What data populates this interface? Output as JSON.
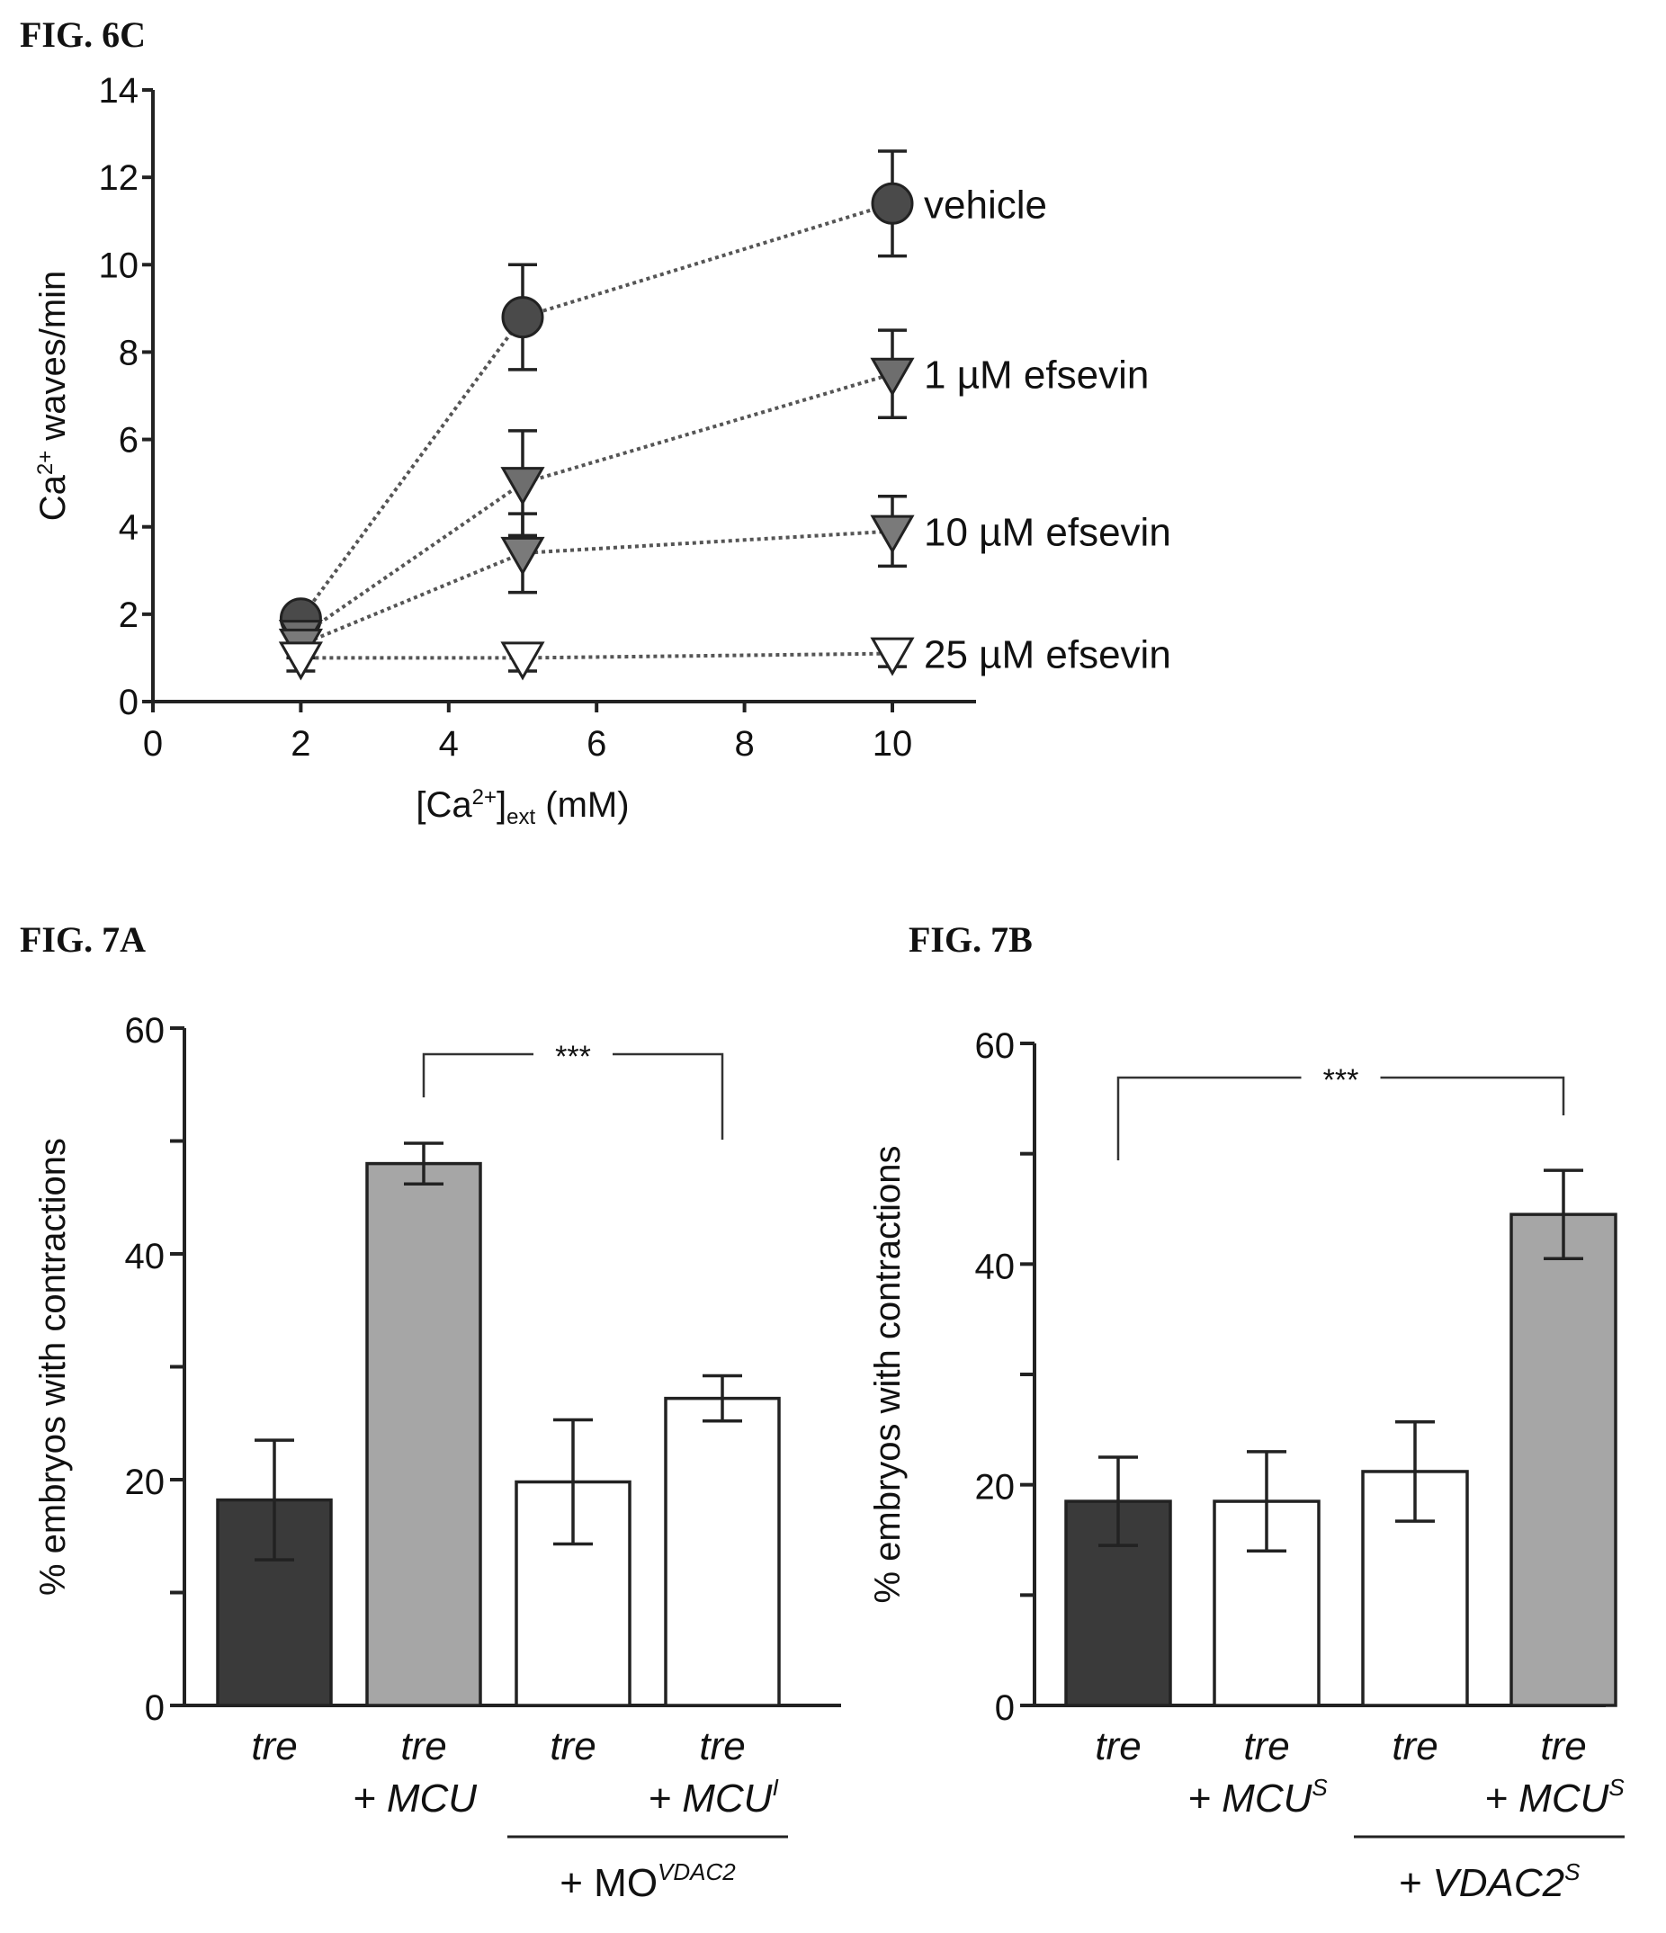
{
  "chart_data": [
    {
      "fig_label": "FIG. 6C",
      "type": "line",
      "xlabel_pre": "[Ca",
      "xlabel_sup": "2+",
      "xlabel_mid": "]",
      "xlabel_sub": "ext",
      "xlabel_post": " (mM)",
      "ylabel_pre": "Ca",
      "ylabel_sup": "2+",
      "ylabel_post": " waves/min",
      "xlim": [
        0,
        11
      ],
      "ylim": [
        0,
        14
      ],
      "xticks": [
        0,
        2,
        4,
        6,
        8,
        10
      ],
      "yticks": [
        0,
        2,
        4,
        6,
        8,
        10,
        12,
        14
      ],
      "x": [
        2,
        5,
        10
      ],
      "series": [
        {
          "name": "vehicle",
          "marker": "circle",
          "fill": "#4a4a4a",
          "y": [
            1.9,
            8.8,
            11.4
          ],
          "err": [
            0.3,
            1.2,
            1.2
          ]
        },
        {
          "name": "1 µM efsevin",
          "marker": "triangle-down",
          "fill": "#6e6e6e",
          "y": [
            1.5,
            5.0,
            7.5
          ],
          "err": [
            0.3,
            1.2,
            1.0
          ]
        },
        {
          "name": "10 µM efsevin",
          "marker": "triangle-down",
          "fill": "#7a7a7a",
          "y": [
            1.3,
            3.4,
            3.9
          ],
          "err": [
            0.3,
            0.9,
            0.8
          ]
        },
        {
          "name": "25 µM efsevin",
          "marker": "triangle-down",
          "fill": "#ffffff",
          "y": [
            1.0,
            1.0,
            1.1
          ],
          "err": [
            0.3,
            0.3,
            0.3
          ]
        }
      ]
    },
    {
      "fig_label": "FIG. 7A",
      "type": "bar",
      "ylabel": "% embryos with contractions",
      "ylim": [
        0,
        60
      ],
      "yticks_labeled": [
        0,
        20,
        40,
        60
      ],
      "yticks_minor": [
        10,
        30,
        50
      ],
      "categories": [
        {
          "line1": "tre",
          "line2": "",
          "sup": ""
        },
        {
          "line1": "tre",
          "line2": "+ MCU",
          "sup": ""
        },
        {
          "line1": "tre",
          "line2": "",
          "sup": ""
        },
        {
          "line1": "tre",
          "line2": "+ MCU",
          "sup": "I"
        }
      ],
      "values": [
        18.2,
        48.0,
        19.8,
        27.2
      ],
      "errors": [
        5.3,
        1.8,
        5.5,
        2.0
      ],
      "fills": [
        "#3a3a3a",
        "#a6a6a6",
        "#ffffff",
        "#ffffff"
      ],
      "group_label": {
        "text": "+ MO",
        "sup": "VDAC2",
        "from": 2,
        "to": 3
      },
      "significance": {
        "from": 1,
        "to": 3,
        "label": "***"
      }
    },
    {
      "fig_label": "FIG. 7B",
      "type": "bar",
      "ylabel": "% embryos with contractions",
      "ylim": [
        0,
        60
      ],
      "yticks_labeled": [
        0,
        20,
        40,
        60
      ],
      "yticks_minor": [
        10,
        30,
        50
      ],
      "categories": [
        {
          "line1": "tre",
          "line2": "",
          "sup": ""
        },
        {
          "line1": "tre",
          "line2": "+ MCU",
          "sup": "S"
        },
        {
          "line1": "tre",
          "line2": "",
          "sup": ""
        },
        {
          "line1": "tre",
          "line2": "+ MCU",
          "sup": "S"
        }
      ],
      "values": [
        18.5,
        18.5,
        21.2,
        44.5
      ],
      "errors": [
        4.0,
        4.5,
        4.5,
        4.0
      ],
      "fills": [
        "#3a3a3a",
        "#ffffff",
        "#ffffff",
        "#a6a6a6"
      ],
      "group_label": {
        "text": "+ VDAC2",
        "sup": "S",
        "from": 2,
        "to": 3
      },
      "significance": {
        "from": 0,
        "to": 3,
        "label": "***"
      }
    }
  ]
}
